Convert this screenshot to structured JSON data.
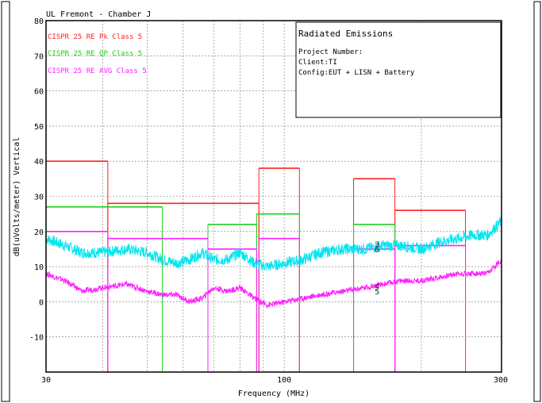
{
  "chart_data": {
    "type": "line",
    "title": "UL Fremont - Chamber J",
    "xlabel": "Frequency (MHz)",
    "ylabel": "dB(uVolts/meter) Vertical",
    "x_scale": "log",
    "xlim": [
      30,
      300
    ],
    "ylim": [
      -20,
      80
    ],
    "x_tick_labels": [
      "30",
      "100",
      "300"
    ],
    "y_ticks": [
      80,
      70,
      60,
      50,
      40,
      30,
      20,
      10,
      0,
      -10
    ],
    "grid": true,
    "legend_position": "top-left",
    "info_box": {
      "title": "Radiated Emissions",
      "lines": [
        "Project Number:",
        "Client:TI",
        "Config:EUT + LISN + Battery"
      ]
    },
    "limit_series": [
      {
        "name": "CISPR 25 RE Pk Class 5",
        "color": "#ff2020",
        "segments": [
          {
            "x": [
              30,
              41
            ],
            "y": 40
          },
          {
            "x": [
              41,
              88
            ],
            "y": 28
          },
          {
            "x": [
              88,
              108
            ],
            "y": 38
          },
          {
            "x": [
              142,
              175
            ],
            "y": 35
          },
          {
            "x": [
              175,
              250
            ],
            "y": 26
          }
        ]
      },
      {
        "name": "CISPR 25 RE QP Class 5",
        "color": "#20d020",
        "segments": [
          {
            "x": [
              30,
              54
            ],
            "y": 27
          },
          {
            "x": [
              68,
              87
            ],
            "y": 22
          },
          {
            "x": [
              87,
              108
            ],
            "y": 25
          },
          {
            "x": [
              142,
              175
            ],
            "y": 22
          }
        ]
      },
      {
        "name": "CISPR 25 RE AVG Class 5",
        "color": "#ff20ff",
        "segments": [
          {
            "x": [
              30,
              41
            ],
            "y": 20
          },
          {
            "x": [
              41,
              68
            ],
            "y": 18
          },
          {
            "x": [
              68,
              87
            ],
            "y": 15
          },
          {
            "x": [
              88,
              108
            ],
            "y": 18
          },
          {
            "x": [
              142,
              175
            ],
            "y": 15
          },
          {
            "x": [
              175,
              250
            ],
            "y": 16
          }
        ]
      }
    ],
    "measured_series": [
      {
        "color": "#00e5ee",
        "x": [
          30,
          33,
          36,
          40,
          45,
          50,
          54,
          58,
          62,
          66,
          70,
          75,
          80,
          86,
          92,
          100,
          110,
          120,
          135,
          150,
          165,
          180,
          200,
          220,
          240,
          260,
          280,
          300
        ],
        "y": [
          18,
          16,
          14,
          14,
          15,
          14,
          12,
          11,
          12,
          14,
          12,
          12,
          14,
          11,
          10,
          11,
          12,
          14,
          15,
          15,
          16,
          16,
          15,
          17,
          18,
          19,
          19,
          23
        ]
      },
      {
        "color": "#ff20ff",
        "x": [
          30,
          33,
          36,
          40,
          45,
          50,
          54,
          58,
          62,
          66,
          70,
          75,
          80,
          86,
          92,
          100,
          110,
          120,
          135,
          150,
          165,
          180,
          200,
          220,
          240,
          260,
          280,
          300
        ],
        "y": [
          8,
          6,
          3,
          4,
          5,
          3,
          2,
          2,
          0,
          1,
          4,
          3,
          4,
          1,
          -1,
          0,
          1,
          2,
          3,
          4,
          5,
          6,
          6,
          7,
          8,
          8,
          8,
          12
        ]
      }
    ],
    "markers": [
      {
        "label": "3",
        "x": 160,
        "y": 16.5
      },
      {
        "label": "6",
        "x": 160,
        "y": 15
      },
      {
        "label": "4",
        "x": 160,
        "y": 4.5
      },
      {
        "label": "5",
        "x": 160,
        "y": 3
      }
    ]
  }
}
